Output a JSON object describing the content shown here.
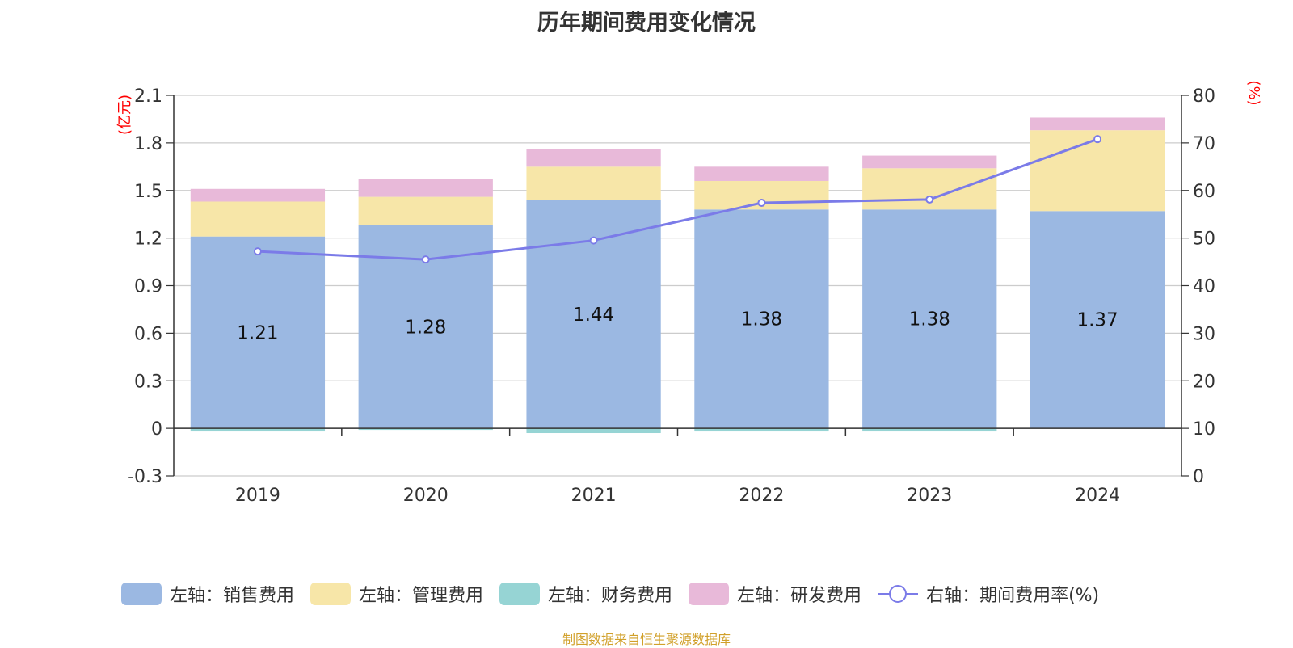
{
  "title": "历年期间费用变化情况",
  "source": "制图数据来自恒生聚源数据库",
  "chart_data": {
    "type": "bar",
    "stacked": true,
    "categories": [
      "2019",
      "2020",
      "2021",
      "2022",
      "2023",
      "2024"
    ],
    "left_axis": {
      "unit": "(亿元)",
      "ylim": [
        -0.3,
        2.1
      ],
      "ticks": [
        -0.3,
        0,
        0.3,
        0.6,
        0.9,
        1.2,
        1.5,
        1.8,
        2.1
      ]
    },
    "right_axis": {
      "unit": "(%)",
      "ylim": [
        0,
        80
      ],
      "ticks": [
        0,
        10,
        20,
        30,
        40,
        50,
        60,
        70,
        80
      ]
    },
    "series": [
      {
        "name": "左轴：销售费用",
        "type": "bar",
        "axis": "left",
        "color": "#9bb8e2",
        "values": [
          1.21,
          1.28,
          1.44,
          1.38,
          1.38,
          1.37
        ],
        "show_labels": true
      },
      {
        "name": "左轴：管理费用",
        "type": "bar",
        "axis": "left",
        "color": "#f7e6a8",
        "values": [
          0.22,
          0.18,
          0.21,
          0.18,
          0.26,
          0.51
        ]
      },
      {
        "name": "左轴：财务费用",
        "type": "bar",
        "axis": "left",
        "color": "#96d4d4",
        "values": [
          -0.02,
          -0.01,
          -0.03,
          -0.02,
          -0.02,
          0.0
        ]
      },
      {
        "name": "左轴：研发费用",
        "type": "bar",
        "axis": "left",
        "color": "#e8b9d9",
        "values": [
          0.08,
          0.11,
          0.11,
          0.09,
          0.08,
          0.08
        ]
      },
      {
        "name": "右轴：期间费用率(%)",
        "type": "line",
        "axis": "right",
        "color": "#7b7be8",
        "values": [
          47.2,
          45.5,
          49.5,
          57.4,
          58.1,
          70.8
        ]
      }
    ],
    "grid": true,
    "legend_position": "bottom"
  }
}
